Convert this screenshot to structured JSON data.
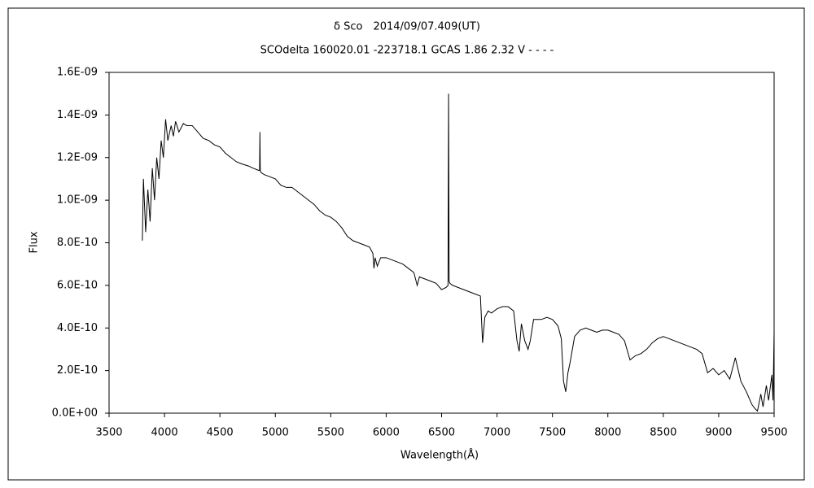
{
  "chart_data": {
    "type": "line",
    "title": "δ Sco　2014/09/07.409(UT)",
    "subtitle": "SCOdelta 160020.01 -223718.1 GCAS 1.86 2.32 V - - - -",
    "x_label": "Wavelength(Å)",
    "y_label": "Flux",
    "color": "#000000",
    "xlim": [
      3500,
      9500
    ],
    "xticks": [
      3500,
      4000,
      4500,
      5000,
      5500,
      6000,
      6500,
      7000,
      7500,
      8000,
      8500,
      9000,
      9500
    ],
    "ylim": [
      0,
      1.6e-09
    ],
    "yticks": [
      {
        "value": 0,
        "label": "0.0E+00"
      },
      {
        "value": 2e-10,
        "label": "2.0E-10"
      },
      {
        "value": 4e-10,
        "label": "4.0E-10"
      },
      {
        "value": 6e-10,
        "label": "6.0E-10"
      },
      {
        "value": 8e-10,
        "label": "8.0E-10"
      },
      {
        "value": 1e-09,
        "label": "1.0E-09"
      },
      {
        "value": 1.2e-09,
        "label": "1.2E-09"
      },
      {
        "value": 1.4e-09,
        "label": "1.4E-09"
      },
      {
        "value": 1.6e-09,
        "label": "1.6E-09"
      }
    ],
    "grid": false,
    "x": [
      3800,
      3810,
      3830,
      3850,
      3870,
      3890,
      3910,
      3930,
      3950,
      3970,
      3990,
      4010,
      4030,
      4060,
      4080,
      4100,
      4130,
      4170,
      4200,
      4250,
      4300,
      4350,
      4400,
      4450,
      4500,
      4550,
      4600,
      4650,
      4700,
      4760,
      4800,
      4850,
      4858,
      4861,
      4864,
      4870,
      4900,
      4950,
      5000,
      5050,
      5100,
      5150,
      5200,
      5250,
      5300,
      5350,
      5400,
      5450,
      5500,
      5550,
      5600,
      5650,
      5700,
      5750,
      5800,
      5850,
      5880,
      5890,
      5900,
      5920,
      5950,
      6000,
      6050,
      6100,
      6150,
      6200,
      6250,
      6280,
      6300,
      6350,
      6400,
      6450,
      6500,
      6540,
      6558,
      6563,
      6568,
      6575,
      6600,
      6650,
      6700,
      6750,
      6800,
      6850,
      6870,
      6890,
      6920,
      6950,
      7000,
      7050,
      7100,
      7150,
      7180,
      7200,
      7220,
      7250,
      7280,
      7300,
      7330,
      7400,
      7450,
      7500,
      7550,
      7580,
      7600,
      7620,
      7640,
      7660,
      7700,
      7750,
      7800,
      7850,
      7900,
      7950,
      8000,
      8050,
      8100,
      8150,
      8200,
      8250,
      8300,
      8350,
      8400,
      8450,
      8500,
      8550,
      8600,
      8650,
      8700,
      8750,
      8800,
      8850,
      8900,
      8950,
      9000,
      9050,
      9100,
      9150,
      9200,
      9250,
      9300,
      9330,
      9350,
      9380,
      9400,
      9430,
      9450,
      9480,
      9490,
      9500
    ],
    "values": [
      8.1e-10,
      1.1e-09,
      8.5e-10,
      1.05e-09,
      9e-10,
      1.15e-09,
      1e-09,
      1.2e-09,
      1.1e-09,
      1.28e-09,
      1.2e-09,
      1.38e-09,
      1.28e-09,
      1.35e-09,
      1.3e-09,
      1.37e-09,
      1.32e-09,
      1.36e-09,
      1.35e-09,
      1.35e-09,
      1.32e-09,
      1.29e-09,
      1.28e-09,
      1.26e-09,
      1.25e-09,
      1.22e-09,
      1.2e-09,
      1.18e-09,
      1.17e-09,
      1.16e-09,
      1.15e-09,
      1.14e-09,
      1.14e-09,
      1.32e-09,
      1.14e-09,
      1.13e-09,
      1.12e-09,
      1.11e-09,
      1.1e-09,
      1.07e-09,
      1.06e-09,
      1.06e-09,
      1.04e-09,
      1.02e-09,
      1e-09,
      9.8e-10,
      9.5e-10,
      9.3e-10,
      9.2e-10,
      9e-10,
      8.7e-10,
      8.3e-10,
      8.1e-10,
      8e-10,
      7.9e-10,
      7.8e-10,
      7.5e-10,
      6.8e-10,
      7.3e-10,
      6.9e-10,
      7.3e-10,
      7.3e-10,
      7.2e-10,
      7.1e-10,
      7e-10,
      6.8e-10,
      6.6e-10,
      6e-10,
      6.4e-10,
      6.3e-10,
      6.2e-10,
      6.1e-10,
      5.8e-10,
      5.9e-10,
      6e-10,
      1.5e-09,
      6.2e-10,
      6.1e-10,
      6e-10,
      5.9e-10,
      5.8e-10,
      5.7e-10,
      5.6e-10,
      5.5e-10,
      3.3e-10,
      4.5e-10,
      4.8e-10,
      4.7e-10,
      4.9e-10,
      5e-10,
      5e-10,
      4.8e-10,
      3.4e-10,
      2.9e-10,
      4.2e-10,
      3.4e-10,
      3e-10,
      3.4e-10,
      4.4e-10,
      4.4e-10,
      4.5e-10,
      4.4e-10,
      4.1e-10,
      3.5e-10,
      1.5e-10,
      1e-10,
      1.9e-10,
      2.4e-10,
      3.6e-10,
      3.9e-10,
      4e-10,
      3.9e-10,
      3.8e-10,
      3.9e-10,
      3.9e-10,
      3.8e-10,
      3.7e-10,
      3.4e-10,
      2.5e-10,
      2.7e-10,
      2.8e-10,
      3e-10,
      3.3e-10,
      3.5e-10,
      3.6e-10,
      3.5e-10,
      3.4e-10,
      3.3e-10,
      3.2e-10,
      3.1e-10,
      3e-10,
      2.8e-10,
      1.9e-10,
      2.1e-10,
      1.8e-10,
      2e-10,
      1.6e-10,
      2.6e-10,
      1.5e-10,
      1e-10,
      4e-11,
      2e-11,
      1e-11,
      9e-11,
      3e-11,
      1.3e-10,
      6e-11,
      1.8e-10,
      6e-11,
      3.8e-10
    ]
  }
}
